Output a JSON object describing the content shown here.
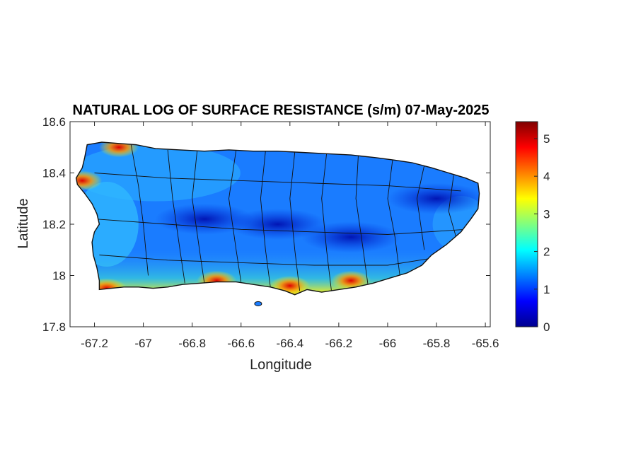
{
  "chart_data": {
    "type": "heatmap",
    "title": "NATURAL LOG OF SURFACE RESISTANCE (s/m) 07-May-2025",
    "xlabel": "Longitude",
    "ylabel": "Latitude",
    "xlim": [
      -67.3,
      -65.58
    ],
    "ylim": [
      17.8,
      18.6
    ],
    "x_ticks": [
      -67.2,
      -67,
      -66.8,
      -66.6,
      -66.4,
      -66.2,
      -66,
      -65.8,
      -65.6
    ],
    "x_tick_labels": [
      "-67.2",
      "-67",
      "-66.8",
      "-66.6",
      "-66.4",
      "-66.2",
      "-66",
      "-65.8",
      "-65.6"
    ],
    "y_ticks": [
      17.8,
      18,
      18.2,
      18.4,
      18.6
    ],
    "y_tick_labels": [
      "17.8",
      "18",
      "18.2",
      "18.4",
      "18.6"
    ],
    "colorbar": {
      "colormap": "jet",
      "limits": [
        0,
        5.45
      ],
      "ticks": [
        0,
        1,
        2,
        3,
        4,
        5
      ],
      "tick_labels": [
        "0",
        "1",
        "2",
        "3",
        "4",
        "5"
      ]
    },
    "grid": false,
    "region": "Puerto Rico (municipality boundaries overlaid)",
    "field_features": [
      {
        "lon": -66.45,
        "lat": 18.2,
        "value": 0.6
      },
      {
        "lon": -66.75,
        "lat": 18.22,
        "value": 0.7
      },
      {
        "lon": -65.8,
        "lat": 18.3,
        "value": 0.4
      },
      {
        "lon": -66.15,
        "lat": 18.15,
        "value": 0.8
      },
      {
        "lon": -67.1,
        "lat": 18.5,
        "value": 4.8
      },
      {
        "lon": -66.4,
        "lat": 17.96,
        "value": 4.8
      },
      {
        "lon": -66.15,
        "lat": 17.98,
        "value": 4.2
      },
      {
        "lon": -67.15,
        "lat": 17.95,
        "value": 3.6
      },
      {
        "lon": -66.7,
        "lat": 17.98,
        "value": 3.8
      },
      {
        "lon": -67.25,
        "lat": 18.37,
        "value": 3.0
      }
    ]
  }
}
